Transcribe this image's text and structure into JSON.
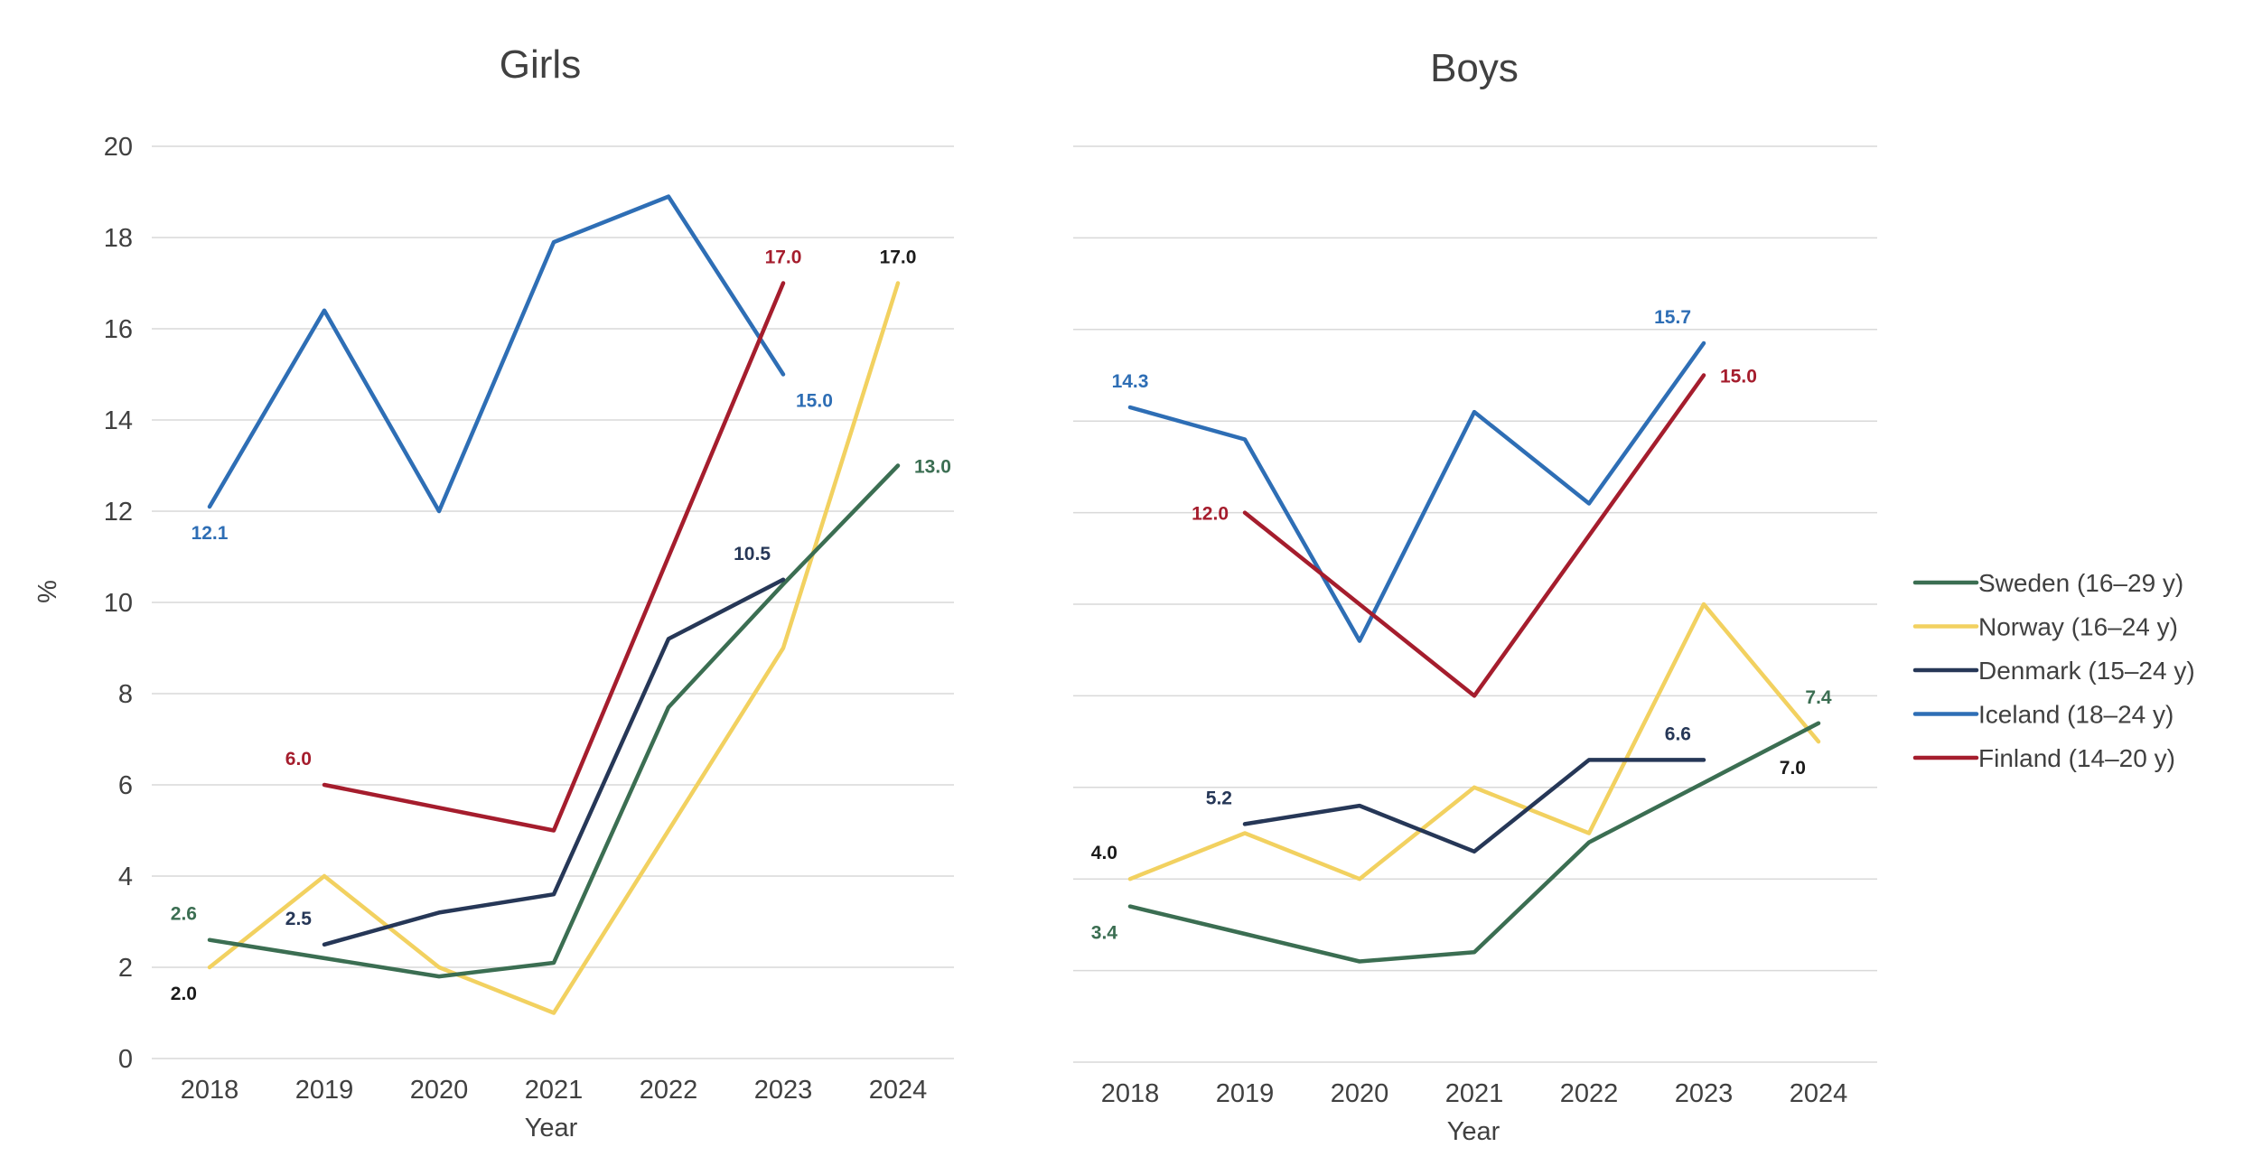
{
  "chart_data": [
    {
      "type": "line",
      "title": "Girls",
      "xlabel": "Year",
      "ylabel": "%",
      "categories": [
        "2018",
        "2019",
        "2020",
        "2021",
        "2022",
        "2023",
        "2024"
      ],
      "ylim": [
        0,
        20
      ],
      "yticks": [
        "0",
        "2",
        "4",
        "6",
        "8",
        "10",
        "12",
        "14",
        "16",
        "18",
        "20"
      ],
      "grid": true,
      "series": [
        {
          "name": "Iceland (18–24 y)",
          "color": "#2e6eb5",
          "values": [
            12.1,
            16.4,
            12.0,
            17.9,
            18.9,
            15.0,
            null
          ]
        },
        {
          "name": "Finland (14–20 y)",
          "color": "#a51d2d",
          "values": [
            null,
            6.0,
            5.5,
            5.0,
            11.0,
            17.0,
            null
          ]
        },
        {
          "name": "Norway (16–24 y)",
          "color": "#f2d160",
          "values": [
            2.0,
            4.0,
            2.0,
            1.0,
            5.0,
            9.0,
            17.0
          ]
        },
        {
          "name": "Sweden (16–29 y)",
          "color": "#3b6e52",
          "values": [
            2.6,
            2.2,
            1.8,
            2.1,
            7.7,
            10.4,
            13.0
          ]
        },
        {
          "name": "Denmark (15–24 y)",
          "color": "#263757",
          "values": [
            null,
            2.5,
            3.2,
            3.6,
            9.2,
            10.5,
            null
          ]
        }
      ],
      "data_labels": [
        {
          "text": "12.1",
          "series": "Iceland (18–24 y)",
          "color": "#2e6eb5",
          "x": "2018",
          "y": 12.1,
          "pos": "below"
        },
        {
          "text": "15.0",
          "series": "Iceland (18–24 y)",
          "color": "#2e6eb5",
          "x": "2023",
          "y": 15.0,
          "pos": "below-right"
        },
        {
          "text": "17.0",
          "series": "Finland (14–20 y)",
          "color": "#a51d2d",
          "x": "2023",
          "y": 17.0,
          "pos": "above"
        },
        {
          "text": "6.0",
          "series": "Finland (14–20 y)",
          "color": "#a51d2d",
          "x": "2019",
          "y": 6.0,
          "pos": "above-left"
        },
        {
          "text": "17.0",
          "series": "Norway (16–24 y)",
          "color": "#1a1a1a",
          "x": "2024",
          "y": 17.0,
          "pos": "above"
        },
        {
          "text": "2.0",
          "series": "Norway (16–24 y)",
          "color": "#1a1a1a",
          "x": "2018",
          "y": 2.0,
          "pos": "below-left"
        },
        {
          "text": "13.0",
          "series": "Sweden (16–29 y)",
          "color": "#3b6e52",
          "x": "2024",
          "y": 13.0,
          "pos": "right"
        },
        {
          "text": "2.6",
          "series": "Sweden (16–29 y)",
          "color": "#3b6e52",
          "x": "2018",
          "y": 2.6,
          "pos": "above-left"
        },
        {
          "text": "10.5",
          "series": "Denmark (15–24 y)",
          "color": "#263757",
          "x": "2023",
          "y": 10.5,
          "pos": "above-left"
        },
        {
          "text": "2.5",
          "series": "Denmark (15–24 y)",
          "color": "#263757",
          "x": "2019",
          "y": 2.5,
          "pos": "above-left"
        }
      ]
    },
    {
      "type": "line",
      "title": "Boys",
      "xlabel": "Year",
      "ylabel": "",
      "categories": [
        "2018",
        "2019",
        "2020",
        "2021",
        "2022",
        "2023",
        "2024"
      ],
      "ylim": [
        0,
        20
      ],
      "grid": true,
      "series": [
        {
          "name": "Iceland (18–24 y)",
          "color": "#2e6eb5",
          "values": [
            14.3,
            13.6,
            9.2,
            14.2,
            12.2,
            15.7,
            null
          ]
        },
        {
          "name": "Finland (14–20 y)",
          "color": "#a51d2d",
          "values": [
            null,
            12.0,
            null,
            8.0,
            null,
            15.0,
            null
          ]
        },
        {
          "name": "Norway (16–24 y)",
          "color": "#f2d160",
          "values": [
            4.0,
            5.0,
            4.0,
            6.0,
            5.0,
            10.0,
            7.0
          ]
        },
        {
          "name": "Sweden (16–29 y)",
          "color": "#3b6e52",
          "values": [
            3.4,
            2.8,
            2.2,
            2.4,
            4.8,
            6.1,
            7.4
          ]
        },
        {
          "name": "Denmark (15–24 y)",
          "color": "#263757",
          "values": [
            null,
            5.2,
            5.6,
            4.6,
            6.6,
            6.6,
            null
          ]
        }
      ],
      "data_labels": [
        {
          "text": "14.3",
          "series": "Iceland (18–24 y)",
          "color": "#2e6eb5",
          "x": "2018",
          "y": 14.3,
          "pos": "above"
        },
        {
          "text": "15.7",
          "series": "Iceland (18–24 y)",
          "color": "#2e6eb5",
          "x": "2023",
          "y": 15.7,
          "pos": "above-left"
        },
        {
          "text": "12.0",
          "series": "Finland (14–20 y)",
          "color": "#a51d2d",
          "x": "2019",
          "y": 12.0,
          "pos": "left"
        },
        {
          "text": "15.0",
          "series": "Finland (14–20 y)",
          "color": "#a51d2d",
          "x": "2023",
          "y": 15.0,
          "pos": "right"
        },
        {
          "text": "4.0",
          "series": "Norway (16–24 y)",
          "color": "#1a1a1a",
          "x": "2018",
          "y": 4.0,
          "pos": "above-left"
        },
        {
          "text": "7.0",
          "series": "Norway (16–24 y)",
          "color": "#1a1a1a",
          "x": "2024",
          "y": 7.0,
          "pos": "below-left"
        },
        {
          "text": "7.4",
          "series": "Sweden (16–29 y)",
          "color": "#3b6e52",
          "x": "2024",
          "y": 7.4,
          "pos": "above"
        },
        {
          "text": "3.4",
          "series": "Sweden (16–29 y)",
          "color": "#3b6e52",
          "x": "2018",
          "y": 3.4,
          "pos": "below-left"
        },
        {
          "text": "5.2",
          "series": "Denmark (15–24 y)",
          "color": "#263757",
          "x": "2019",
          "y": 5.2,
          "pos": "above-left"
        },
        {
          "text": "6.6",
          "series": "Denmark (15–24 y)",
          "color": "#263757",
          "x": "2023",
          "y": 6.6,
          "pos": "above-left"
        }
      ]
    }
  ],
  "legend": {
    "placement": "right",
    "items": [
      {
        "label": "Sweden (16–29 y)",
        "color": "#3b6e52"
      },
      {
        "label": "Norway (16–24 y)",
        "color": "#f2d160"
      },
      {
        "label": "Denmark (15–24 y)",
        "color": "#263757"
      },
      {
        "label": "Iceland (18–24 y)",
        "color": "#2e6eb5"
      },
      {
        "label": "Finland (14–20 y)",
        "color": "#a51d2d"
      }
    ]
  }
}
